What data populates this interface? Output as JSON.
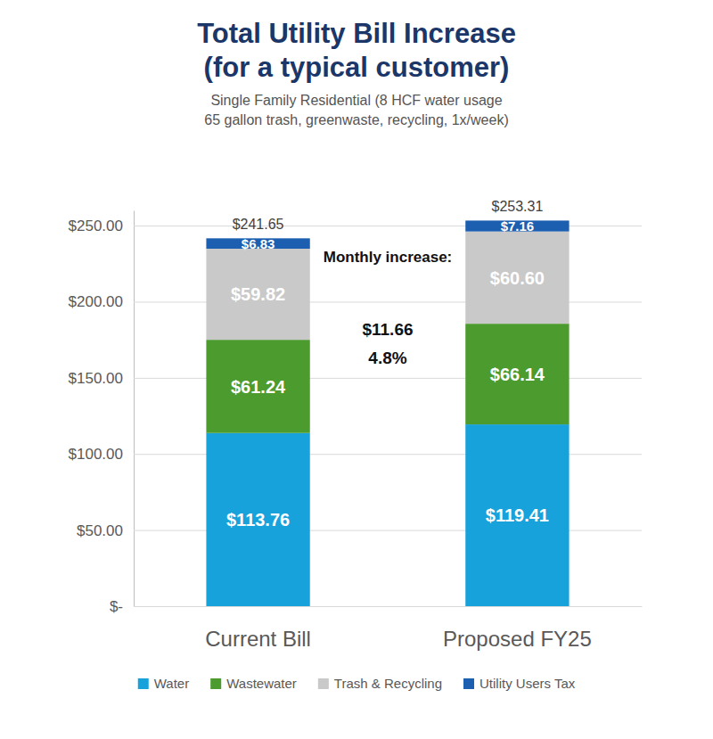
{
  "chart_data": {
    "type": "bar",
    "title": [
      "Total Utility Bill Increase",
      "(for a typical customer)"
    ],
    "subtitle": [
      "Single Family Residential (8 HCF water usage",
      "65 gallon trash, greenwaste, recycling, 1x/week)"
    ],
    "categories": [
      "Current Bill",
      "Proposed FY25"
    ],
    "series": [
      {
        "name": "Water",
        "color": "#17a2dc",
        "values": [
          113.76,
          119.41
        ],
        "value_labels": [
          "$113.76",
          "$119.41"
        ]
      },
      {
        "name": "Wastewater",
        "color": "#4c9b2f",
        "values": [
          61.24,
          66.14
        ],
        "value_labels": [
          "$61.24",
          "$66.14"
        ]
      },
      {
        "name": "Trash & Recycling",
        "color": "#c9c9c9",
        "values": [
          59.82,
          60.6
        ],
        "value_labels": [
          "$59.82",
          "$60.60"
        ]
      },
      {
        "name": "Utility Users Tax",
        "color": "#1c5fb0",
        "values": [
          6.83,
          7.16
        ],
        "value_labels": [
          "$6.83",
          "$7.16"
        ]
      }
    ],
    "totals": [
      241.65,
      253.31
    ],
    "total_labels": [
      "$241.65",
      "$253.31"
    ],
    "annotations": [
      "Monthly increase:",
      "$11.66",
      "4.8%"
    ],
    "ylim": [
      0,
      260
    ],
    "yticks": [
      {
        "value": 0,
        "label": "$-"
      },
      {
        "value": 50,
        "label": "$50.00"
      },
      {
        "value": 100,
        "label": "$100.00"
      },
      {
        "value": 150,
        "label": "$150.00"
      },
      {
        "value": 200,
        "label": "$200.00"
      },
      {
        "value": 250,
        "label": "$250.00"
      }
    ],
    "stacked": true,
    "data_labels": true,
    "grid": true,
    "legend": "bottom"
  }
}
